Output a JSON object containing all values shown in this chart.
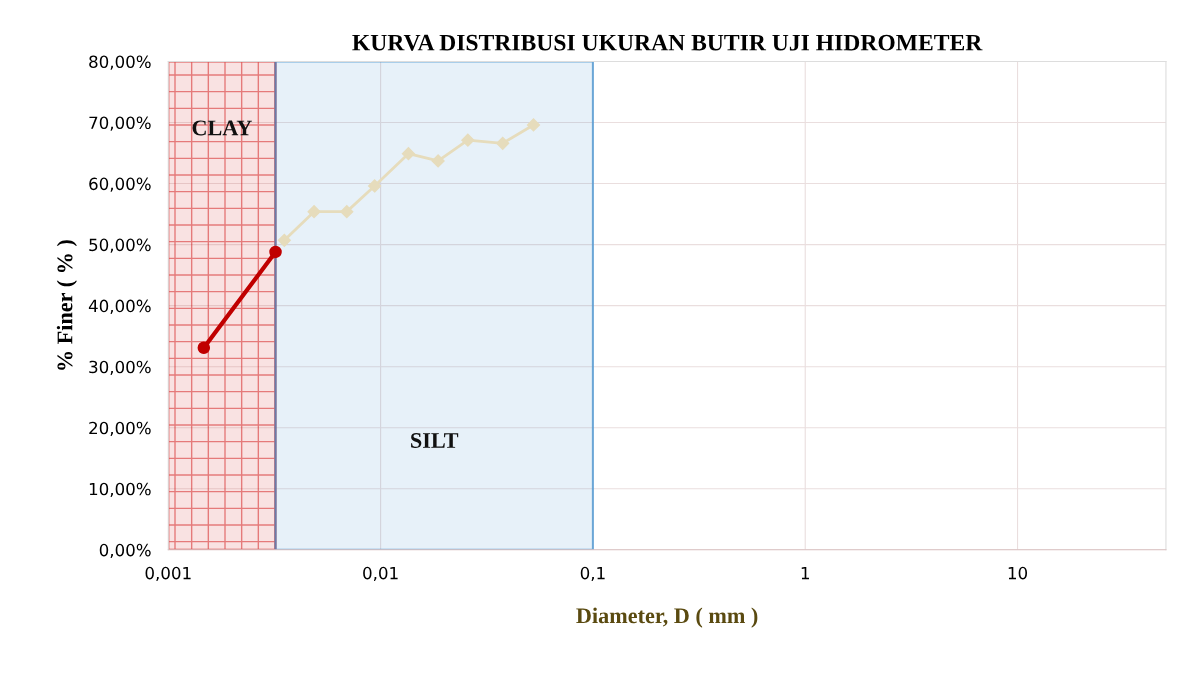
{
  "chart_data": {
    "type": "line",
    "title": "KURVA DISTRIBUSI UKURAN BUTIR UJI HIDROMETER",
    "xlabel": "Diameter, D ( mm )",
    "ylabel": "% Finer ( % )",
    "log": "x",
    "grid": true,
    "marker": "diamond",
    "line_style": "solid",
    "xlim": [
      0.001,
      50
    ],
    "xticks": [
      {
        "value": 0.001,
        "label": "0,001"
      },
      {
        "value": 0.01,
        "label": "0,01"
      },
      {
        "value": 0.1,
        "label": "0,1"
      },
      {
        "value": 1,
        "label": "1"
      },
      {
        "value": 10,
        "label": "10"
      }
    ],
    "ylim": [
      0,
      80
    ],
    "yticks": [
      {
        "value": 0,
        "label": "0,00%"
      },
      {
        "value": 10,
        "label": "10,00%"
      },
      {
        "value": 20,
        "label": "20,00%"
      },
      {
        "value": 30,
        "label": "30,00%"
      },
      {
        "value": 40,
        "label": "40,00%"
      },
      {
        "value": 50,
        "label": "50,00%"
      },
      {
        "value": 60,
        "label": "60,00%"
      },
      {
        "value": 70,
        "label": "70,00%"
      },
      {
        "value": 80,
        "label": "80,00%"
      }
    ],
    "series": [
      {
        "color": "#c00000",
        "marker": "circle",
        "x": [
          0.00147,
          0.0032
        ],
        "values": [
          33.1,
          48.8
        ]
      },
      {
        "color": "#e6dcbc",
        "x": [
          0.00352,
          0.00486,
          0.00693,
          0.00937,
          0.01352,
          0.01866,
          0.02576,
          0.0376,
          0.0525
        ],
        "values": [
          50.7,
          55.4,
          55.4,
          59.6,
          64.9,
          63.7,
          67.1,
          66.6,
          69.6
        ]
      }
    ],
    "bands": [
      {
        "axis": "x",
        "from": 0.001,
        "to": 0.0032,
        "label": "CLAY",
        "color": "#d01010"
      },
      {
        "axis": "x",
        "from": 0.0032,
        "to": 0.1,
        "label": "SILT",
        "color": "#3a8fd0"
      }
    ]
  }
}
